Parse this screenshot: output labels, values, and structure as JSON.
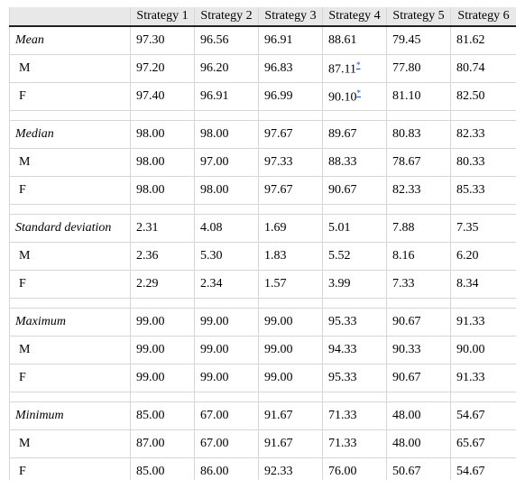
{
  "table": {
    "header": [
      "",
      "Strategy 1",
      "Strategy 2",
      "Strategy 3",
      "Strategy 4",
      "Strategy 5",
      "Strategy 6"
    ],
    "groups": [
      {
        "title": "Mean",
        "values": [
          "97.30",
          "96.56",
          "96.91",
          "88.61",
          "79.45",
          "81.62"
        ],
        "rows": [
          {
            "label": "M",
            "values": [
              "97.20",
              "96.20",
              "96.83",
              {
                "text": "87.11",
                "note": "*"
              },
              "77.80",
              "80.74"
            ]
          },
          {
            "label": "F",
            "values": [
              "97.40",
              "96.91",
              "96.99",
              {
                "text": "90.10",
                "note": "*"
              },
              "81.10",
              "82.50"
            ]
          }
        ]
      },
      {
        "title": "Median",
        "values": [
          "98.00",
          "98.00",
          "97.67",
          "89.67",
          "80.83",
          "82.33"
        ],
        "rows": [
          {
            "label": "M",
            "values": [
              "98.00",
              "97.00",
              "97.33",
              "88.33",
              "78.67",
              "80.33"
            ]
          },
          {
            "label": "F",
            "values": [
              "98.00",
              "98.00",
              "97.67",
              "90.67",
              "82.33",
              "85.33"
            ]
          }
        ]
      },
      {
        "title": "Standard deviation",
        "values": [
          "2.31",
          "4.08",
          "1.69",
          "5.01",
          "7.88",
          "7.35"
        ],
        "rows": [
          {
            "label": "M",
            "values": [
              "2.36",
              "5.30",
              "1.83",
              "5.52",
              "8.16",
              "6.20"
            ]
          },
          {
            "label": "F",
            "values": [
              "2.29",
              "2.34",
              "1.57",
              "3.99",
              "7.33",
              "8.34"
            ]
          }
        ]
      },
      {
        "title": "Maximum",
        "values": [
          "99.00",
          "99.00",
          "99.00",
          "95.33",
          "90.67",
          "91.33"
        ],
        "rows": [
          {
            "label": "M",
            "values": [
              "99.00",
              "99.00",
              "99.00",
              "94.33",
              "90.33",
              "90.00"
            ]
          },
          {
            "label": "F",
            "values": [
              "99.00",
              "99.00",
              "99.00",
              "95.33",
              "90.67",
              "91.33"
            ]
          }
        ]
      },
      {
        "title": "Minimum",
        "values": [
          "85.00",
          "67.00",
          "91.67",
          "71.33",
          "48.00",
          "54.67"
        ],
        "rows": [
          {
            "label": "M",
            "values": [
              "87.00",
              "67.00",
              "91.67",
              "71.33",
              "48.00",
              "65.67"
            ]
          },
          {
            "label": "F",
            "values": [
              "85.00",
              "86.00",
              "92.33",
              "76.00",
              "50.67",
              "54.67"
            ]
          }
        ]
      }
    ]
  }
}
